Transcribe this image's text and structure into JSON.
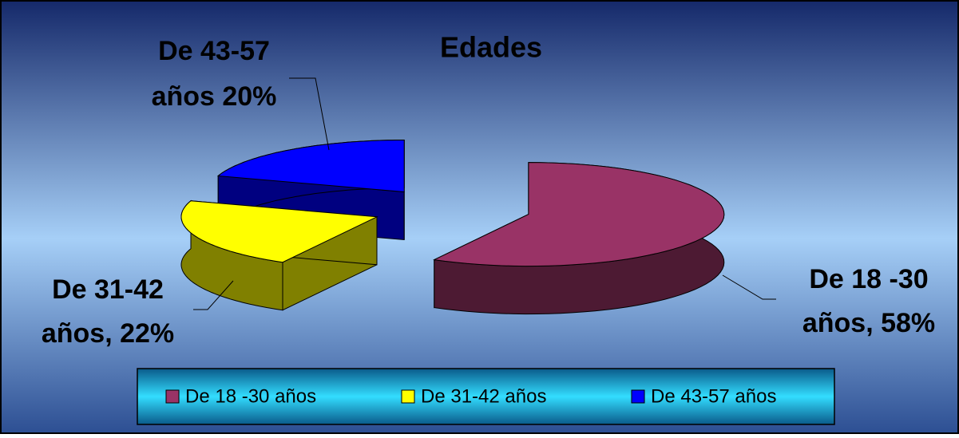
{
  "chart_data": {
    "type": "pie",
    "title": "Edades",
    "categories": [
      "De 18 -30 años",
      "De 31-42 años",
      "De 43-57 años"
    ],
    "values": [
      58,
      22,
      20
    ],
    "value_labels": [
      [
        "De 18 -30",
        "años,  58%"
      ],
      [
        "De 31-42",
        "años,  22%"
      ],
      [
        "De 43-57",
        "años  20%"
      ]
    ],
    "colors": [
      "#993366",
      "#ffff00",
      "#0000ff"
    ],
    "legend": "bottom"
  }
}
